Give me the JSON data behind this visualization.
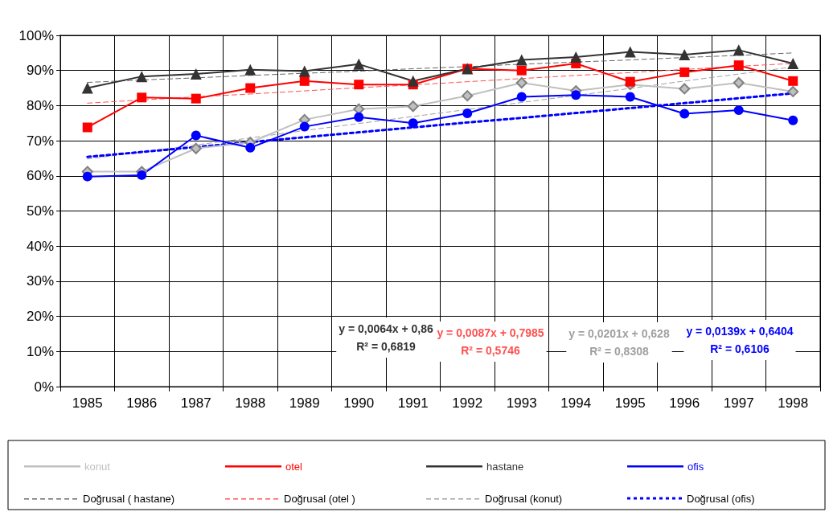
{
  "chart_data": {
    "type": "line",
    "categories": [
      "1985",
      "1986",
      "1987",
      "1988",
      "1989",
      "1990",
      "1991",
      "1992",
      "1993",
      "1994",
      "1995",
      "1996",
      "1997",
      "1998"
    ],
    "series": [
      {
        "name": "konut",
        "color": "#c0c0c0",
        "marker": "diamond",
        "values": [
          61.2,
          61.2,
          67.8,
          69.5,
          76,
          79,
          79.8,
          82.8,
          86.5,
          84.2,
          86,
          84.8,
          86.5,
          84
        ]
      },
      {
        "name": "otel",
        "color": "#ff0000",
        "marker": "square",
        "values": [
          73.8,
          82.3,
          82,
          85,
          87,
          86,
          86,
          90.5,
          90,
          92,
          86.8,
          89.5,
          91.5,
          87
        ]
      },
      {
        "name": "hastane",
        "color": "#333333",
        "marker": "triangle",
        "values": [
          85,
          88.3,
          89,
          90.2,
          89.8,
          91.8,
          87,
          90.5,
          93,
          93.8,
          95.3,
          94.5,
          95.8,
          92
        ]
      },
      {
        "name": "ofis",
        "color": "#0000ff",
        "marker": "circle",
        "values": [
          59.8,
          60.2,
          71.5,
          68,
          74,
          76.7,
          75,
          77.8,
          82.5,
          83,
          82.5,
          77.7,
          78.7,
          75.8
        ]
      },
      {
        "name": "Doğrusal ( hastane)",
        "color": "#666666",
        "marker": "none",
        "line_style": "dashed",
        "values": [
          86.6,
          87.3,
          87.9,
          88.6,
          89.2,
          89.8,
          90.5,
          91.1,
          91.8,
          92.4,
          93,
          93.7,
          94.3,
          95
        ]
      },
      {
        "name": "Doğrusal (otel )",
        "color": "#ff5050",
        "marker": "none",
        "line_style": "dashed",
        "values": [
          80.7,
          81.6,
          82.5,
          83.3,
          84.2,
          85.1,
          85.9,
          86.8,
          87.7,
          88.6,
          89.4,
          90.3,
          91.2,
          92
        ]
      },
      {
        "name": "Doğrusal (konut)",
        "color": "#a0a0a0",
        "marker": "none",
        "line_style": "dashed",
        "values": [
          64.8,
          66.8,
          68.8,
          70.8,
          72.9,
          74.9,
          76.9,
          78.9,
          80.9,
          82.9,
          84.9,
          87,
          89,
          91
        ]
      },
      {
        "name": "Doğrusal (ofis)",
        "color": "#0000ff",
        "marker": "none",
        "line_style": "dotted",
        "values": [
          65.4,
          66.8,
          68.2,
          69.6,
          71,
          72.4,
          73.8,
          75.2,
          76.5,
          77.9,
          79.3,
          80.7,
          82.1,
          83.5
        ]
      }
    ],
    "ylim": [
      0,
      100
    ],
    "yticks": [
      {
        "value": 0,
        "label": "0%"
      },
      {
        "value": 10,
        "label": "10%"
      },
      {
        "value": 20,
        "label": "20%"
      },
      {
        "value": 30,
        "label": "30%"
      },
      {
        "value": 40,
        "label": "40%"
      },
      {
        "value": 50,
        "label": "50%"
      },
      {
        "value": 60,
        "label": "60%"
      },
      {
        "value": 70,
        "label": "70%"
      },
      {
        "value": 80,
        "label": "80%"
      },
      {
        "value": 90,
        "label": "90%"
      },
      {
        "value": 100,
        "label": "100%"
      }
    ],
    "annotations": [
      "y = 0,0064x + 0,86\nR² = 0,6819",
      "y = 0,0087x + 0,7985\nR² = 0,5746",
      "y = 0,0201x + 0,628\nR² = 0,8308",
      "y = 0,0139x + 0,6404\nR² = 0,6106"
    ],
    "grid": true,
    "legend": "bottom"
  }
}
